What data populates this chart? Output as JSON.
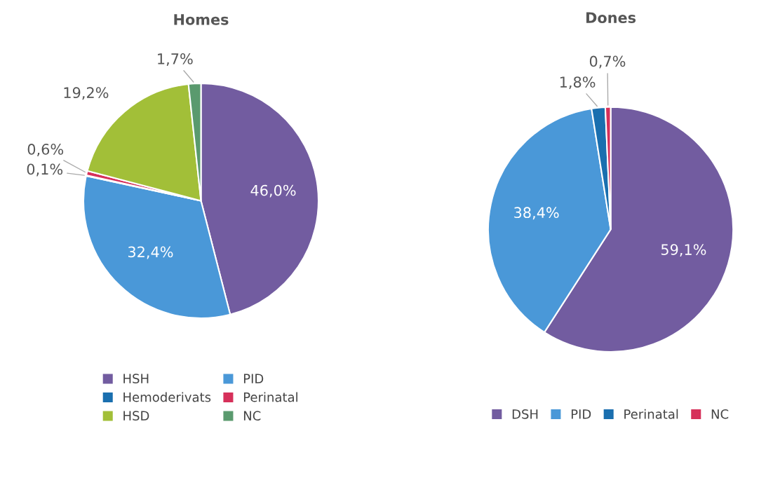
{
  "chart_data": [
    {
      "type": "pie",
      "title": "Homes",
      "categories": [
        "HSH",
        "PID",
        "Hemoderivats",
        "Perinatal",
        "HSD",
        "NC"
      ],
      "values": [
        46.0,
        32.4,
        0.1,
        0.6,
        19.2,
        1.7
      ],
      "colors": [
        "#725ca0",
        "#4a98d8",
        "#1a6faf",
        "#d6305a",
        "#a2bf38",
        "#5a9a6e"
      ],
      "value_labels": [
        "46,0%",
        "32,4%",
        "0,1%",
        "0,6%",
        "19,2%",
        "1,7%"
      ],
      "legend": "bottom"
    },
    {
      "type": "pie",
      "title": "Dones",
      "categories": [
        "DSH",
        "PID",
        "Perinatal",
        "NC"
      ],
      "values": [
        59.1,
        38.4,
        1.8,
        0.7
      ],
      "colors": [
        "#725ca0",
        "#4a98d8",
        "#1a6faf",
        "#d6305a"
      ],
      "value_labels": [
        "59,1%",
        "38,4%",
        "1,8%",
        "0,7%"
      ],
      "legend": "bottom"
    }
  ]
}
